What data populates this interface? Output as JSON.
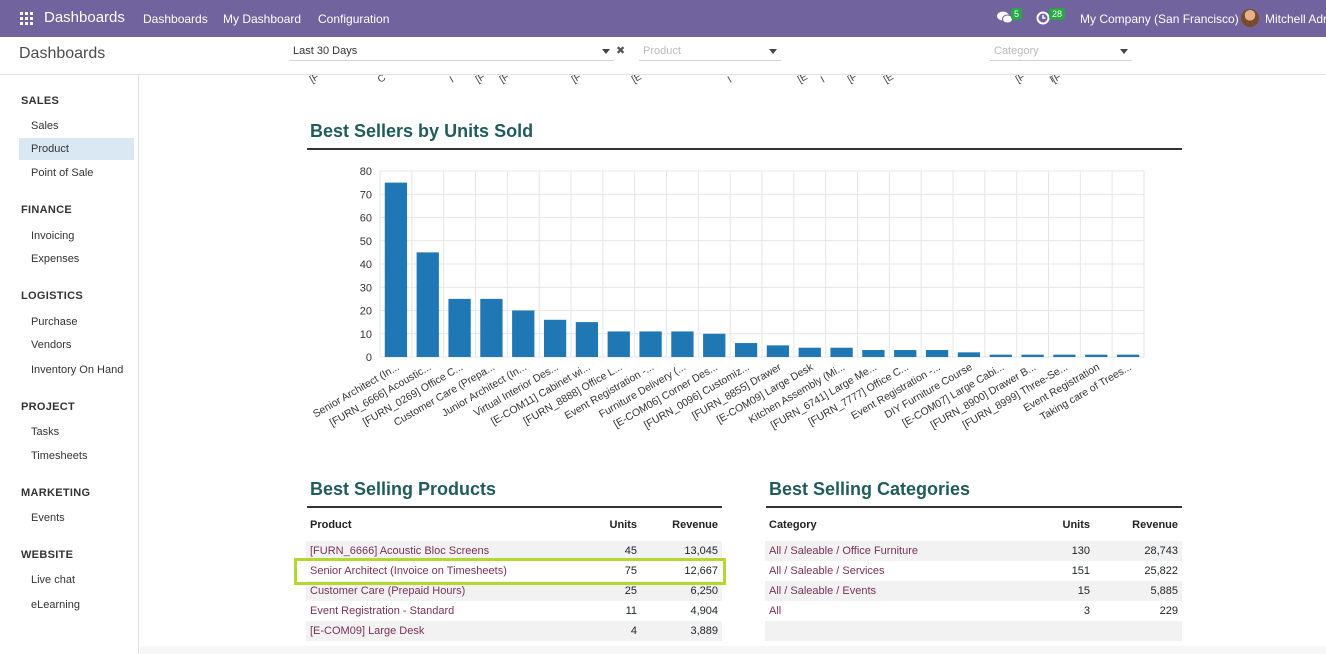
{
  "navbar": {
    "brand": "Dashboards",
    "menu": [
      "Dashboards",
      "My Dashboard",
      "Configuration"
    ],
    "chat_count": "5",
    "activity_count": "28",
    "company": "My Company (San Francisco)",
    "user": "Mitchell Adr"
  },
  "control": {
    "title": "Dashboards",
    "date_filter": "Last 30 Days",
    "product_placeholder": "Product",
    "category_placeholder": "Category"
  },
  "sidebar": {
    "sections": [
      {
        "title": "SALES",
        "items": [
          "Sales",
          "Product",
          "Point of Sale"
        ]
      },
      {
        "title": "FINANCE",
        "items": [
          "Invoicing",
          "Expenses"
        ]
      },
      {
        "title": "LOGISTICS",
        "items": [
          "Purchase",
          "Vendors",
          "Inventory On Hand"
        ]
      },
      {
        "title": "PROJECT",
        "items": [
          "Tasks",
          "Timesheets"
        ]
      },
      {
        "title": "MARKETING",
        "items": [
          "Events"
        ]
      },
      {
        "title": "WEBSITE",
        "items": [
          "Live chat",
          "eLearning"
        ]
      }
    ],
    "active_item": "Product"
  },
  "top_cut_labels": [
    "[F",
    "C",
    "I",
    "[F",
    "[F",
    "[F",
    "[E",
    "I",
    "[E",
    "I",
    "[F",
    "[E",
    "[F",
    "I",
    "[F"
  ],
  "chart_data": {
    "type": "bar",
    "title": "Best Sellers by Units Sold",
    "categories": [
      "Senior Architect (In...",
      "[FURN_6666] Acoustic...",
      "[FURN_0269] Office C...",
      "Customer Care (Prepa...",
      "Junior Architect (In...",
      "Virtual Interior Des...",
      "[E-COM11] Cabinet wi...",
      "[FURN_8888] Office L...",
      "Event Registration -...",
      "Furniture Delivery (...",
      "[E-COM06] Corner Des...",
      "[FURN_0096] Customiz...",
      "[FURN_8855] Drawer",
      "[E-COM09] Large Desk",
      "Kitchen Assembly (Mi...",
      "[FURN_6741] Large Me...",
      "[FURN_7777] Office C...",
      "Event Registration -...",
      "DIY Furniture Course",
      "[E-COM07] Large Cabi...",
      "[FURN_8900] Drawer B...",
      "[FURN_8999] Three-Se...",
      "Event Registration",
      "Taking care of Trees..."
    ],
    "values": [
      75,
      45,
      25,
      25,
      20,
      16,
      15,
      11,
      11,
      11,
      10,
      6,
      5,
      4,
      4,
      3,
      3,
      3,
      2,
      1,
      1,
      1,
      1,
      1
    ],
    "ylim": [
      0,
      80
    ],
    "yticks": [
      "0",
      "10",
      "20",
      "30",
      "40",
      "50",
      "60",
      "70",
      "80"
    ],
    "bar_color": "#1f77b4",
    "grid": true
  },
  "products": {
    "title": "Best Selling Products",
    "headers": [
      "Product",
      "Units",
      "Revenue"
    ],
    "rows": [
      [
        "[FURN_6666] Acoustic Bloc Screens",
        "45",
        "13,045"
      ],
      [
        "Senior Architect (Invoice on Timesheets)",
        "75",
        "12,667"
      ],
      [
        "Customer Care (Prepaid Hours)",
        "25",
        "6,250"
      ],
      [
        "Event Registration - Standard",
        "11",
        "4,904"
      ],
      [
        "[E-COM09] Large Desk",
        "4",
        "3,889"
      ]
    ]
  },
  "categories": {
    "title": "Best Selling Categories",
    "headers": [
      "Category",
      "Units",
      "Revenue"
    ],
    "rows": [
      [
        "All / Saleable / Office Furniture",
        "130",
        "28,743"
      ],
      [
        "All / Saleable / Services",
        "151",
        "25,822"
      ],
      [
        "All / Saleable / Events",
        "15",
        "5,885"
      ],
      [
        "All",
        "3",
        "229"
      ]
    ]
  },
  "colors": {
    "navbar": "#71639e",
    "heading": "#1f5c5a",
    "link": "#7c2f5a",
    "highlight": "#b3d930"
  }
}
